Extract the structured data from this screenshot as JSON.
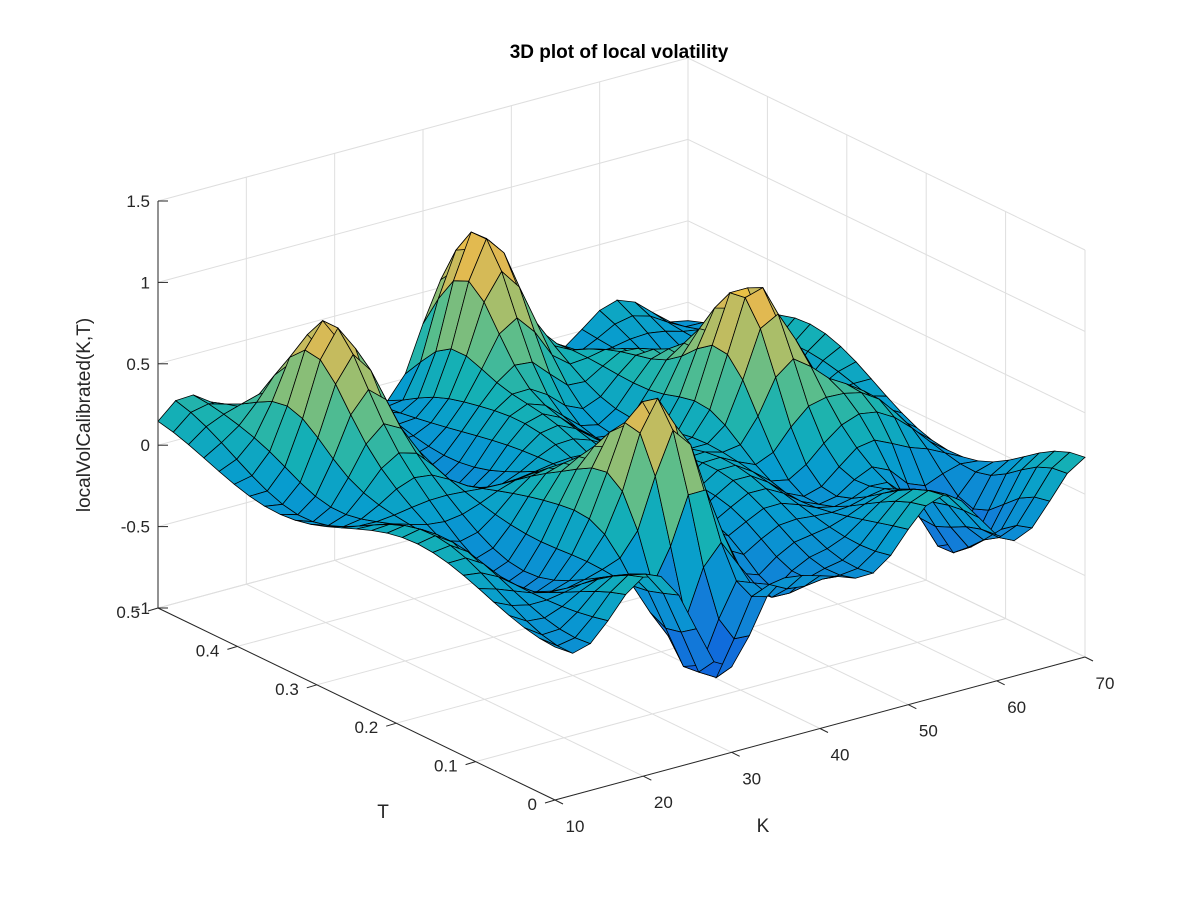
{
  "chart_data": {
    "type": "surface",
    "title": "3D plot of local volatility",
    "xlabel": "K",
    "ylabel": "T",
    "zlabel": "localVolCalibrated(K,T)",
    "xlim": [
      10,
      70
    ],
    "ylim": [
      0,
      0.5
    ],
    "zlim": [
      -1,
      1.5
    ],
    "x_ticks": [
      "10",
      "20",
      "30",
      "40",
      "50",
      "60",
      "70"
    ],
    "y_ticks": [
      "0",
      "0.1",
      "0.2",
      "0.3",
      "0.4",
      "0.5"
    ],
    "z_ticks": [
      "-1",
      "-0.5",
      "0",
      "0.5",
      "1",
      "1.5"
    ],
    "grid": true,
    "colormap": "parula",
    "colors": {
      "surface_low": "#352a87",
      "surface_mid": "#20b2aa",
      "surface_high": "#f9fb0e",
      "edges": "#000000"
    },
    "surface_features": [
      {
        "K": 32,
        "T": 0.1,
        "z": 1.05,
        "kind": "peak"
      },
      {
        "K": 55,
        "T": 0.25,
        "z": 1.0,
        "kind": "peak"
      },
      {
        "K": 42,
        "T": 0.45,
        "z": 0.95,
        "kind": "peak"
      },
      {
        "K": 20,
        "T": 0.4,
        "z": 0.7,
        "kind": "peak"
      },
      {
        "K": 30,
        "T": 0.05,
        "z": -0.85,
        "kind": "trough"
      },
      {
        "K": 63,
        "T": 0.1,
        "z": -0.7,
        "kind": "trough"
      },
      {
        "K": 38,
        "T": 0.05,
        "z": -0.55,
        "kind": "trough"
      }
    ]
  }
}
